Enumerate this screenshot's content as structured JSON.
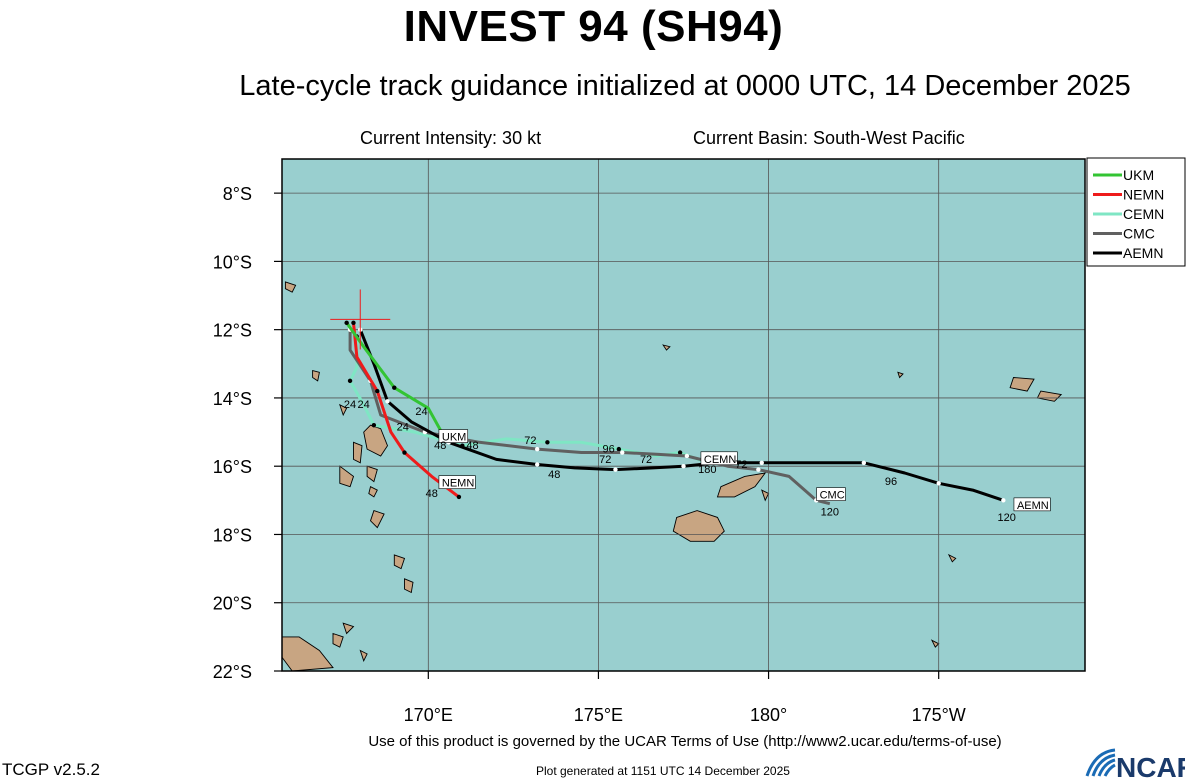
{
  "header": {
    "title": "INVEST 94 (SH94)",
    "subtitle": "Late-cycle track guidance initialized at 0000 UTC, 14 December 2025",
    "intensity": "Current Intensity: 30 kt",
    "basin": "Current Basin: South-West Pacific"
  },
  "footer": {
    "terms": "Use of this product is governed by the UCAR Terms of Use (http://www2.ucar.edu/terms-of-use)",
    "version": "TCGP v2.5.2",
    "generated": "Plot generated at 1151 UTC   14 December 2025",
    "logo": "NCAR"
  },
  "colors": {
    "ocean": "#99cfcf",
    "land": "#c8a582",
    "UKM": "#33c433",
    "NEMN": "#ee1b1b",
    "CEMN": "#7fe6c4",
    "CMC": "#606060",
    "AEMN": "#000000"
  },
  "chart_data": {
    "type": "map",
    "lon_range": [
      165.7,
      189.3
    ],
    "lat_range": [
      -22.0,
      -7.0
    ],
    "lat_ticks": [
      {
        "lat": -8,
        "label": "8°S"
      },
      {
        "lat": -10,
        "label": "10°S"
      },
      {
        "lat": -12,
        "label": "12°S"
      },
      {
        "lat": -14,
        "label": "14°S"
      },
      {
        "lat": -16,
        "label": "16°S"
      },
      {
        "lat": -18,
        "label": "18°S"
      },
      {
        "lat": -20,
        "label": "20°S"
      },
      {
        "lat": -22,
        "label": "22°S"
      }
    ],
    "lon_ticks": [
      {
        "lon": 170,
        "label": "170°E"
      },
      {
        "lon": 175,
        "label": "175°E"
      },
      {
        "lon": 180,
        "label": "180°"
      },
      {
        "lon": 185,
        "label": "175°W"
      }
    ],
    "current_position": {
      "lon": 168.0,
      "lat": -11.7
    },
    "tracks": [
      {
        "name": "UKM",
        "label_lon": 170.4,
        "label_lat": -15.25,
        "points": [
          [
            167.6,
            -11.8
          ],
          [
            168.1,
            -12.5
          ],
          [
            169.0,
            -13.7
          ],
          [
            170.0,
            -14.3
          ],
          [
            170.5,
            -15.2
          ]
        ],
        "hour_labels": [
          {
            "text": "24",
            "lon": 169.8,
            "lat": -14.5
          },
          {
            "text": "48",
            "lon": 170.35,
            "lat": -15.5
          }
        ]
      },
      {
        "name": "NEMN",
        "label_lon": 170.4,
        "label_lat": -16.6,
        "points": [
          [
            167.8,
            -11.8
          ],
          [
            167.9,
            -12.8
          ],
          [
            168.5,
            -13.8
          ],
          [
            168.9,
            -15.0
          ],
          [
            169.3,
            -15.6
          ],
          [
            170.1,
            -16.3
          ],
          [
            170.9,
            -16.9
          ]
        ],
        "hour_labels": [
          {
            "text": "24",
            "lon": 167.7,
            "lat": -14.3
          },
          {
            "text": "48",
            "lon": 170.1,
            "lat": -16.9
          }
        ]
      },
      {
        "name": "CEMN",
        "label_lon": 178.1,
        "label_lat": -15.9,
        "points": [
          [
            167.9,
            -12.2
          ],
          [
            167.9,
            -13.1
          ],
          [
            167.7,
            -13.5
          ],
          [
            168.1,
            -14.2
          ],
          [
            168.4,
            -14.8
          ],
          [
            169.6,
            -15.0
          ],
          [
            171.0,
            -15.4
          ],
          [
            172.3,
            -15.2
          ],
          [
            173.5,
            -15.3
          ],
          [
            174.5,
            -15.3
          ],
          [
            175.6,
            -15.5
          ],
          [
            176.7,
            -15.7
          ],
          [
            177.4,
            -15.6
          ],
          [
            178.2,
            -15.9
          ]
        ],
        "hour_labels": [
          {
            "text": "72",
            "lon": 173.0,
            "lat": -15.35
          },
          {
            "text": "96",
            "lon": 175.3,
            "lat": -15.6
          }
        ]
      },
      {
        "name": "CMC",
        "label_lon": 181.5,
        "label_lat": -16.95,
        "points": [
          [
            167.7,
            -12.0
          ],
          [
            167.7,
            -12.6
          ],
          [
            168.3,
            -13.5
          ],
          [
            168.6,
            -14.5
          ],
          [
            169.9,
            -15.0
          ],
          [
            171.5,
            -15.3
          ],
          [
            173.2,
            -15.5
          ],
          [
            174.5,
            -15.6
          ],
          [
            175.7,
            -15.6
          ],
          [
            176.7,
            -15.65
          ],
          [
            177.6,
            -15.7
          ],
          [
            178.8,
            -16.0
          ],
          [
            179.7,
            -16.1
          ],
          [
            180.6,
            -16.3
          ],
          [
            181.4,
            -17.0
          ],
          [
            181.8,
            -17.1
          ]
        ],
        "hour_labels": [
          {
            "text": "48",
            "lon": 171.3,
            "lat": -15.5
          },
          {
            "text": "72",
            "lon": 175.2,
            "lat": -15.9
          },
          {
            "text": "72",
            "lon": 179.2,
            "lat": -16.05
          },
          {
            "text": "120",
            "lon": 181.8,
            "lat": -17.45
          }
        ]
      },
      {
        "name": "AEMN",
        "label_lon": 187.3,
        "label_lat": -17.25,
        "points": [
          [
            168.0,
            -12.0
          ],
          [
            168.4,
            -13.0
          ],
          [
            168.8,
            -14.1
          ],
          [
            169.5,
            -14.7
          ],
          [
            170.6,
            -15.3
          ],
          [
            172.0,
            -15.8
          ],
          [
            173.2,
            -15.95
          ],
          [
            174.3,
            -16.05
          ],
          [
            175.5,
            -16.1
          ],
          [
            176.6,
            -16.05
          ],
          [
            177.5,
            -16.0
          ],
          [
            178.5,
            -15.9
          ],
          [
            179.8,
            -15.9
          ],
          [
            181.0,
            -15.9
          ],
          [
            182.8,
            -15.9
          ],
          [
            184.0,
            -16.2
          ],
          [
            185.0,
            -16.5
          ],
          [
            186.0,
            -16.7
          ],
          [
            186.9,
            -17.0
          ]
        ],
        "hour_labels": [
          {
            "text": "48",
            "lon": 173.7,
            "lat": -16.35
          },
          {
            "text": "96",
            "lon": 183.6,
            "lat": -16.55
          },
          {
            "text": "120",
            "lon": 187.0,
            "lat": -17.6
          }
        ]
      }
    ],
    "intermediate_markers": [
      {
        "text": "24",
        "lon": 168.1,
        "lat": -14.3
      },
      {
        "text": "24",
        "lon": 169.25,
        "lat": -14.95
      },
      {
        "text": "180",
        "lon": 178.2,
        "lat": -16.2
      },
      {
        "text": "72",
        "lon": 176.4,
        "lat": -15.9
      }
    ],
    "legend": [
      "UKM",
      "NEMN",
      "CEMN",
      "CMC",
      "AEMN"
    ]
  }
}
